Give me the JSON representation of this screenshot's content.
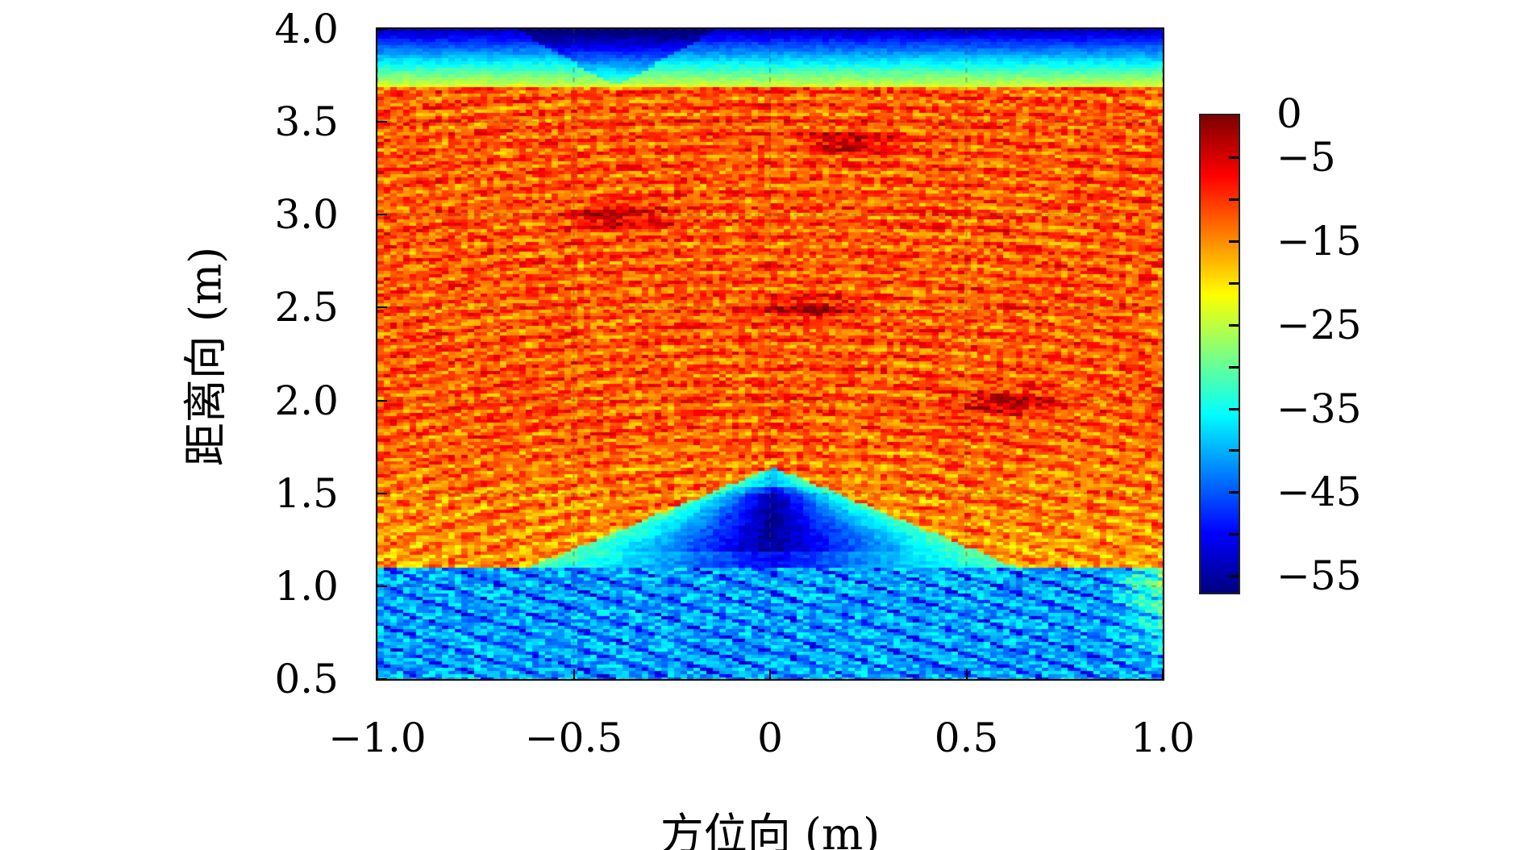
{
  "chart_data": {
    "type": "heatmap",
    "title": "",
    "xlabel": "方位向 (m)",
    "ylabel": "距离向 (m)",
    "xlim": [
      -1.0,
      1.0
    ],
    "ylim": [
      0.5,
      4.0
    ],
    "x_ticks": [
      -1.0,
      -0.5,
      0,
      0.5,
      1.0
    ],
    "x_tick_labels": [
      "−1.0",
      "−0.5",
      "0",
      "0.5",
      "1.0"
    ],
    "y_ticks": [
      0.5,
      1.0,
      1.5,
      2.0,
      2.5,
      3.0,
      3.5,
      4.0
    ],
    "y_tick_labels": [
      "0.5",
      "1.0",
      "1.5",
      "2.0",
      "2.5",
      "3.0",
      "3.5",
      "4.0"
    ],
    "colormap": "jet",
    "colorbar": {
      "range": [
        -57,
        0
      ],
      "ticks": [
        0,
        -5,
        -15,
        -25,
        -35,
        -45,
        -55
      ],
      "tick_labels": [
        "0",
        "−5",
        "−15",
        "−25",
        "−35",
        "−45",
        "−55"
      ],
      "minor_ticks": [
        -5,
        -10,
        -15,
        -20,
        -25,
        -30,
        -35,
        -40,
        -45,
        -50,
        -55
      ],
      "placement": "right"
    },
    "grid": true,
    "features": {
      "strong_targets": [
        {
          "x": -0.4,
          "y": 3.0,
          "value": -2
        },
        {
          "x": 0.1,
          "y": 2.5,
          "value": -2
        },
        {
          "x": 0.2,
          "y": 3.4,
          "value": -3
        },
        {
          "x": 0.6,
          "y": 2.0,
          "value": -2
        }
      ],
      "near_range_low_region_below": 1.1,
      "far_range_low_region_above": 3.7,
      "shadow_apex": {
        "x": 0,
        "y": 1.35,
        "value": -55
      }
    }
  }
}
